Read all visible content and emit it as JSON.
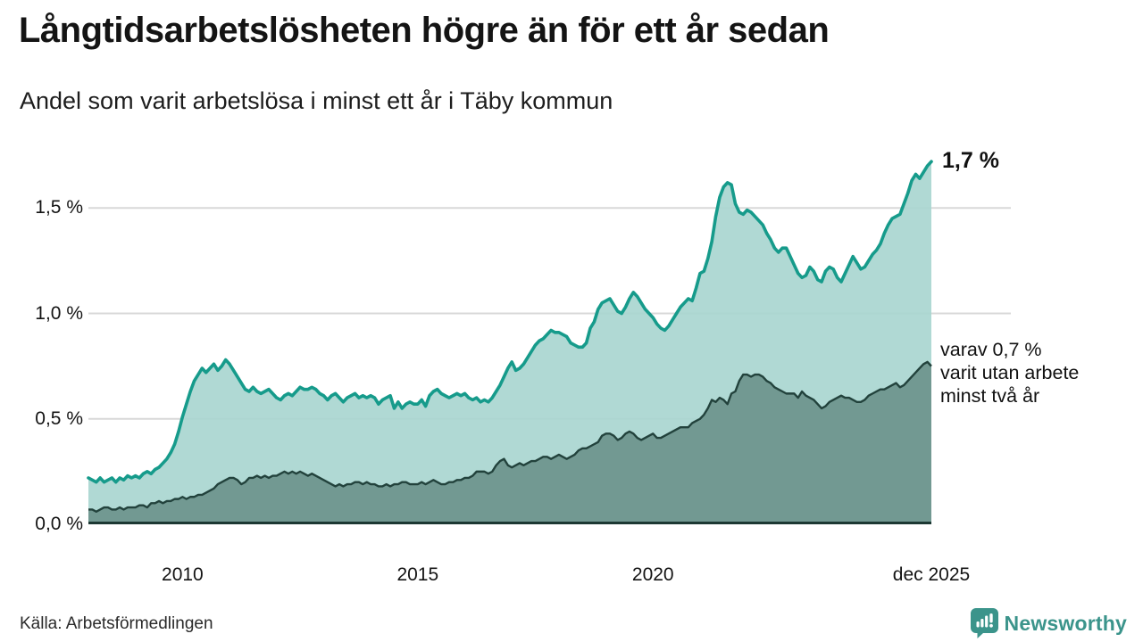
{
  "header": {
    "title": "Långtidsarbetslösheten högre än för ett år sedan",
    "subtitle": "Andel som varit arbetslösa i minst ett år i Täby kommun"
  },
  "annotations": {
    "latest_total": "1,7 %",
    "secondary_lines": [
      "varav 0,7 %",
      "varit utan arbete",
      "minst två år"
    ]
  },
  "footer": {
    "source": "Källa: Arbetsförmedlingen",
    "brand": "Newsworthy"
  },
  "colors": {
    "line_primary": "#169b8b",
    "fill_primary": "#a9d6d0",
    "line_secondary": "#22423c",
    "fill_secondary": "#6f968e",
    "gridline": "#d8d8d8",
    "baseline": "#1c3833",
    "brand_teal": "#3b948b",
    "text": "#141414"
  },
  "chart_data": {
    "type": "area",
    "title": "Långtidsarbetslösheten högre än för ett år sedan",
    "subtitle": "Andel som varit arbetslösa i minst ett år i Täby kommun",
    "unit": "%",
    "x_start_year": 2008.0,
    "x_end_year": 2025.9167,
    "points_per_year": 12,
    "ylim": [
      0,
      1.77
    ],
    "grid": true,
    "legend_position": "none",
    "x_ticks": [
      {
        "label": "2010",
        "year": 2010
      },
      {
        "label": "2015",
        "year": 2015
      },
      {
        "label": "2020",
        "year": 2020
      },
      {
        "label": "dec 2025",
        "year": 2025.9167
      }
    ],
    "y_ticks": [
      {
        "label": "0,0 %",
        "value": 0
      },
      {
        "label": "0,5 %",
        "value": 0.5
      },
      {
        "label": "1,0 %",
        "value": 1.0
      },
      {
        "label": "1,5 %",
        "value": 1.5
      }
    ],
    "series": [
      {
        "name": "Arbetslösa minst ett år",
        "last_value_label": "1,7 %",
        "values": [
          0.22,
          0.21,
          0.2,
          0.22,
          0.2,
          0.21,
          0.22,
          0.2,
          0.22,
          0.21,
          0.23,
          0.22,
          0.23,
          0.22,
          0.24,
          0.25,
          0.24,
          0.26,
          0.27,
          0.29,
          0.31,
          0.34,
          0.38,
          0.44,
          0.51,
          0.57,
          0.63,
          0.68,
          0.71,
          0.74,
          0.72,
          0.74,
          0.76,
          0.73,
          0.75,
          0.78,
          0.76,
          0.73,
          0.7,
          0.67,
          0.64,
          0.63,
          0.65,
          0.63,
          0.62,
          0.63,
          0.64,
          0.62,
          0.6,
          0.59,
          0.61,
          0.62,
          0.61,
          0.63,
          0.65,
          0.64,
          0.64,
          0.65,
          0.64,
          0.62,
          0.61,
          0.59,
          0.61,
          0.62,
          0.6,
          0.58,
          0.6,
          0.61,
          0.62,
          0.6,
          0.61,
          0.6,
          0.61,
          0.6,
          0.57,
          0.59,
          0.6,
          0.61,
          0.55,
          0.58,
          0.55,
          0.57,
          0.58,
          0.57,
          0.57,
          0.59,
          0.56,
          0.61,
          0.63,
          0.64,
          0.62,
          0.61,
          0.6,
          0.61,
          0.62,
          0.61,
          0.62,
          0.6,
          0.59,
          0.6,
          0.58,
          0.59,
          0.58,
          0.6,
          0.63,
          0.66,
          0.7,
          0.74,
          0.77,
          0.73,
          0.74,
          0.76,
          0.79,
          0.82,
          0.85,
          0.87,
          0.88,
          0.9,
          0.92,
          0.91,
          0.91,
          0.9,
          0.89,
          0.86,
          0.85,
          0.84,
          0.84,
          0.86,
          0.93,
          0.96,
          1.02,
          1.05,
          1.06,
          1.07,
          1.04,
          1.01,
          1.0,
          1.03,
          1.07,
          1.1,
          1.08,
          1.05,
          1.02,
          1.0,
          0.98,
          0.95,
          0.93,
          0.92,
          0.94,
          0.97,
          1.0,
          1.03,
          1.05,
          1.07,
          1.06,
          1.12,
          1.19,
          1.2,
          1.26,
          1.34,
          1.46,
          1.55,
          1.6,
          1.62,
          1.61,
          1.52,
          1.48,
          1.47,
          1.49,
          1.48,
          1.46,
          1.44,
          1.42,
          1.38,
          1.35,
          1.31,
          1.29,
          1.31,
          1.31,
          1.27,
          1.23,
          1.19,
          1.17,
          1.18,
          1.22,
          1.2,
          1.16,
          1.15,
          1.2,
          1.22,
          1.21,
          1.17,
          1.15,
          1.19,
          1.23,
          1.27,
          1.24,
          1.21,
          1.22,
          1.25,
          1.28,
          1.3,
          1.33,
          1.38,
          1.42,
          1.45,
          1.46,
          1.47,
          1.52,
          1.57,
          1.63,
          1.66,
          1.64,
          1.67,
          1.7,
          1.72
        ]
      },
      {
        "name": "Utan arbete minst två år",
        "last_value_label": "0,7 %",
        "values": [
          0.07,
          0.07,
          0.06,
          0.07,
          0.08,
          0.08,
          0.07,
          0.07,
          0.08,
          0.07,
          0.08,
          0.08,
          0.08,
          0.09,
          0.09,
          0.08,
          0.1,
          0.1,
          0.11,
          0.1,
          0.11,
          0.11,
          0.12,
          0.12,
          0.13,
          0.12,
          0.13,
          0.13,
          0.14,
          0.14,
          0.15,
          0.16,
          0.17,
          0.19,
          0.2,
          0.21,
          0.22,
          0.22,
          0.21,
          0.19,
          0.2,
          0.22,
          0.22,
          0.23,
          0.22,
          0.23,
          0.22,
          0.23,
          0.23,
          0.24,
          0.25,
          0.24,
          0.25,
          0.24,
          0.25,
          0.24,
          0.23,
          0.24,
          0.23,
          0.22,
          0.21,
          0.2,
          0.19,
          0.18,
          0.19,
          0.18,
          0.19,
          0.19,
          0.2,
          0.2,
          0.19,
          0.2,
          0.19,
          0.19,
          0.18,
          0.18,
          0.19,
          0.18,
          0.19,
          0.19,
          0.2,
          0.2,
          0.19,
          0.19,
          0.19,
          0.2,
          0.19,
          0.2,
          0.21,
          0.2,
          0.19,
          0.19,
          0.2,
          0.2,
          0.21,
          0.21,
          0.22,
          0.22,
          0.23,
          0.25,
          0.25,
          0.25,
          0.24,
          0.25,
          0.28,
          0.3,
          0.31,
          0.28,
          0.27,
          0.28,
          0.29,
          0.28,
          0.29,
          0.3,
          0.3,
          0.31,
          0.32,
          0.32,
          0.31,
          0.32,
          0.33,
          0.32,
          0.31,
          0.32,
          0.33,
          0.35,
          0.36,
          0.36,
          0.37,
          0.38,
          0.39,
          0.42,
          0.43,
          0.43,
          0.42,
          0.4,
          0.41,
          0.43,
          0.44,
          0.43,
          0.41,
          0.4,
          0.41,
          0.42,
          0.43,
          0.41,
          0.41,
          0.42,
          0.43,
          0.44,
          0.45,
          0.46,
          0.46,
          0.46,
          0.48,
          0.49,
          0.5,
          0.52,
          0.55,
          0.59,
          0.58,
          0.6,
          0.59,
          0.57,
          0.62,
          0.63,
          0.68,
          0.71,
          0.71,
          0.7,
          0.71,
          0.71,
          0.7,
          0.68,
          0.67,
          0.65,
          0.64,
          0.63,
          0.62,
          0.62,
          0.62,
          0.6,
          0.63,
          0.61,
          0.6,
          0.59,
          0.57,
          0.55,
          0.56,
          0.58,
          0.59,
          0.6,
          0.61,
          0.6,
          0.6,
          0.59,
          0.58,
          0.58,
          0.59,
          0.61,
          0.62,
          0.63,
          0.64,
          0.64,
          0.65,
          0.66,
          0.67,
          0.65,
          0.66,
          0.68,
          0.7,
          0.72,
          0.74,
          0.76,
          0.77,
          0.75
        ]
      }
    ]
  }
}
